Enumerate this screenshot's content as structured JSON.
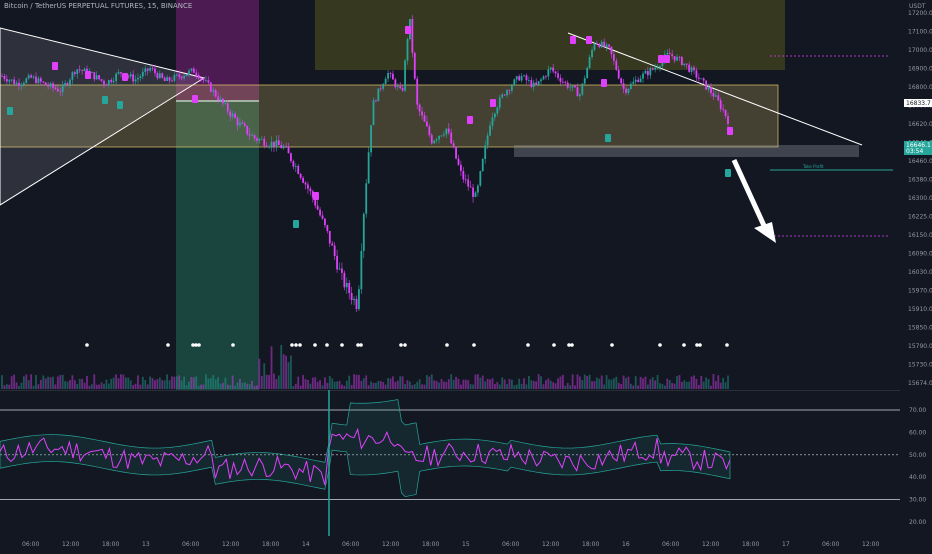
{
  "header": {
    "title": "Bitcoin / TetherUS PERPETUAL FUTURES, 15, BINANCE",
    "currency": "USDT"
  },
  "colors": {
    "background": "#131722",
    "up_candle": "#26a69a",
    "down_candle": "#e040fb",
    "rsi_line": "#e040fb",
    "band": "#26a69a",
    "zone_yellow": "#f5d76e",
    "zone_purple": "#7b1f7a",
    "zone_green": "#1f6b55",
    "zone_olive": "#4a4a1e",
    "arrow": "#ffffff",
    "trendline": "#ffffff"
  },
  "chart_data": [
    {
      "type": "candlestick",
      "panel": "price",
      "y_ticks": [
        17200.0,
        17100.0,
        17000.0,
        16900.0,
        16800.0,
        16700.0,
        16620.0,
        16540.0,
        16460.0,
        16380.0,
        16300.0,
        16225.0,
        16150.0,
        16090.0,
        16030.0,
        15970.0,
        15910.0,
        15850.0,
        15790.0,
        15730.0,
        15674.0
      ],
      "price_labels": [
        {
          "value": "16833.7",
          "style": "white"
        },
        {
          "value": "16646.1",
          "style": "green"
        },
        {
          "value": "03:54",
          "style": "green"
        }
      ],
      "annotation": "Take Profit",
      "approx_close": [
        {
          "t": 0,
          "c": 16860
        },
        {
          "t": 4,
          "c": 16820
        },
        {
          "t": 8,
          "c": 16850
        },
        {
          "t": 12,
          "c": 16810
        },
        {
          "t": 16,
          "c": 16780
        },
        {
          "t": 20,
          "c": 16900
        },
        {
          "t": 24,
          "c": 16870
        },
        {
          "t": 28,
          "c": 16820
        },
        {
          "t": 32,
          "c": 16880
        },
        {
          "t": 36,
          "c": 16840
        },
        {
          "t": 40,
          "c": 16900
        },
        {
          "t": 44,
          "c": 16830
        },
        {
          "t": 48,
          "c": 16860
        },
        {
          "t": 52,
          "c": 16890
        },
        {
          "t": 56,
          "c": 16800
        },
        {
          "t": 60,
          "c": 16700
        },
        {
          "t": 64,
          "c": 16620
        },
        {
          "t": 68,
          "c": 16560
        },
        {
          "t": 72,
          "c": 16540
        },
        {
          "t": 76,
          "c": 16520
        },
        {
          "t": 80,
          "c": 16420
        },
        {
          "t": 84,
          "c": 16300
        },
        {
          "t": 88,
          "c": 16150
        },
        {
          "t": 92,
          "c": 16000
        },
        {
          "t": 96,
          "c": 15920
        },
        {
          "t": 100,
          "c": 16700
        },
        {
          "t": 104,
          "c": 16880
        },
        {
          "t": 108,
          "c": 16760
        },
        {
          "t": 110,
          "c": 17180
        },
        {
          "t": 112,
          "c": 16700
        },
        {
          "t": 116,
          "c": 16550
        },
        {
          "t": 120,
          "c": 16600
        },
        {
          "t": 124,
          "c": 16400
        },
        {
          "t": 128,
          "c": 16300
        },
        {
          "t": 132,
          "c": 16650
        },
        {
          "t": 136,
          "c": 16780
        },
        {
          "t": 140,
          "c": 16860
        },
        {
          "t": 144,
          "c": 16800
        },
        {
          "t": 148,
          "c": 16900
        },
        {
          "t": 152,
          "c": 16820
        },
        {
          "t": 156,
          "c": 16760
        },
        {
          "t": 160,
          "c": 17050
        },
        {
          "t": 164,
          "c": 17000
        },
        {
          "t": 168,
          "c": 16780
        },
        {
          "t": 172,
          "c": 16850
        },
        {
          "t": 176,
          "c": 16900
        },
        {
          "t": 180,
          "c": 16980
        },
        {
          "t": 184,
          "c": 16930
        },
        {
          "t": 188,
          "c": 16850
        },
        {
          "t": 192,
          "c": 16760
        },
        {
          "t": 196,
          "c": 16640
        }
      ]
    },
    {
      "type": "line",
      "panel": "oscillator",
      "y_ticks": [
        70.0,
        60.0,
        50.0,
        40.0,
        30.0,
        20.0
      ],
      "levels": [
        70,
        50,
        30
      ],
      "labels": []
    },
    {
      "type": "axis",
      "x_ticks": [
        "06:00",
        "12:00",
        "18:00",
        "13",
        "06:00",
        "12:00",
        "18:00",
        "14",
        "06:00",
        "12:00",
        "18:00",
        "15",
        "06:00",
        "12:00",
        "18:00",
        "16",
        "06:00",
        "12:00",
        "18:00",
        "17",
        "06:00",
        "12:00"
      ]
    }
  ]
}
